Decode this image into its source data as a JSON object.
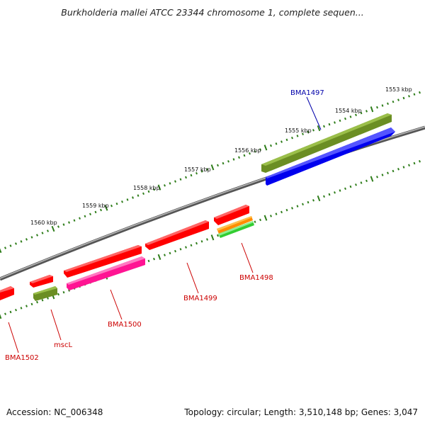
{
  "title": "Burkholderia mallei ATCC 23344 chromosome 1, complete sequen...",
  "footer": {
    "accession": "Accession: NC_006348",
    "summary": "Topology: circular; Length: 3,510,148 bp; Genes: 3,047"
  },
  "ticks": [
    {
      "label": "1553 kbp"
    },
    {
      "label": "1554 kbp"
    },
    {
      "label": "1555 kbp"
    },
    {
      "label": "1556 kbp"
    },
    {
      "label": "1557 kbp"
    },
    {
      "label": "1558 kbp"
    },
    {
      "label": "1559 kbp"
    },
    {
      "label": "1560 kbp"
    }
  ],
  "genes": [
    {
      "label": "BMA1497",
      "color": "#0000aa"
    },
    {
      "label": "BMA1498",
      "color": "#cc0000"
    },
    {
      "label": "BMA1499",
      "color": "#cc0000"
    },
    {
      "label": "BMA1500",
      "color": "#cc0000"
    },
    {
      "label": "mscL",
      "color": "#cc0000"
    },
    {
      "label": "BMA1502",
      "color": "#cc0000"
    }
  ],
  "colors": {
    "cds": "#ff0000",
    "gene_olive": "#6b8e23",
    "gene_blue": "#0000ee",
    "pink": "#ff1493",
    "orange": "#ff8c00",
    "green": "#32cd32",
    "backbone": "#7a7a7a",
    "tick": "#2e7d1a"
  }
}
